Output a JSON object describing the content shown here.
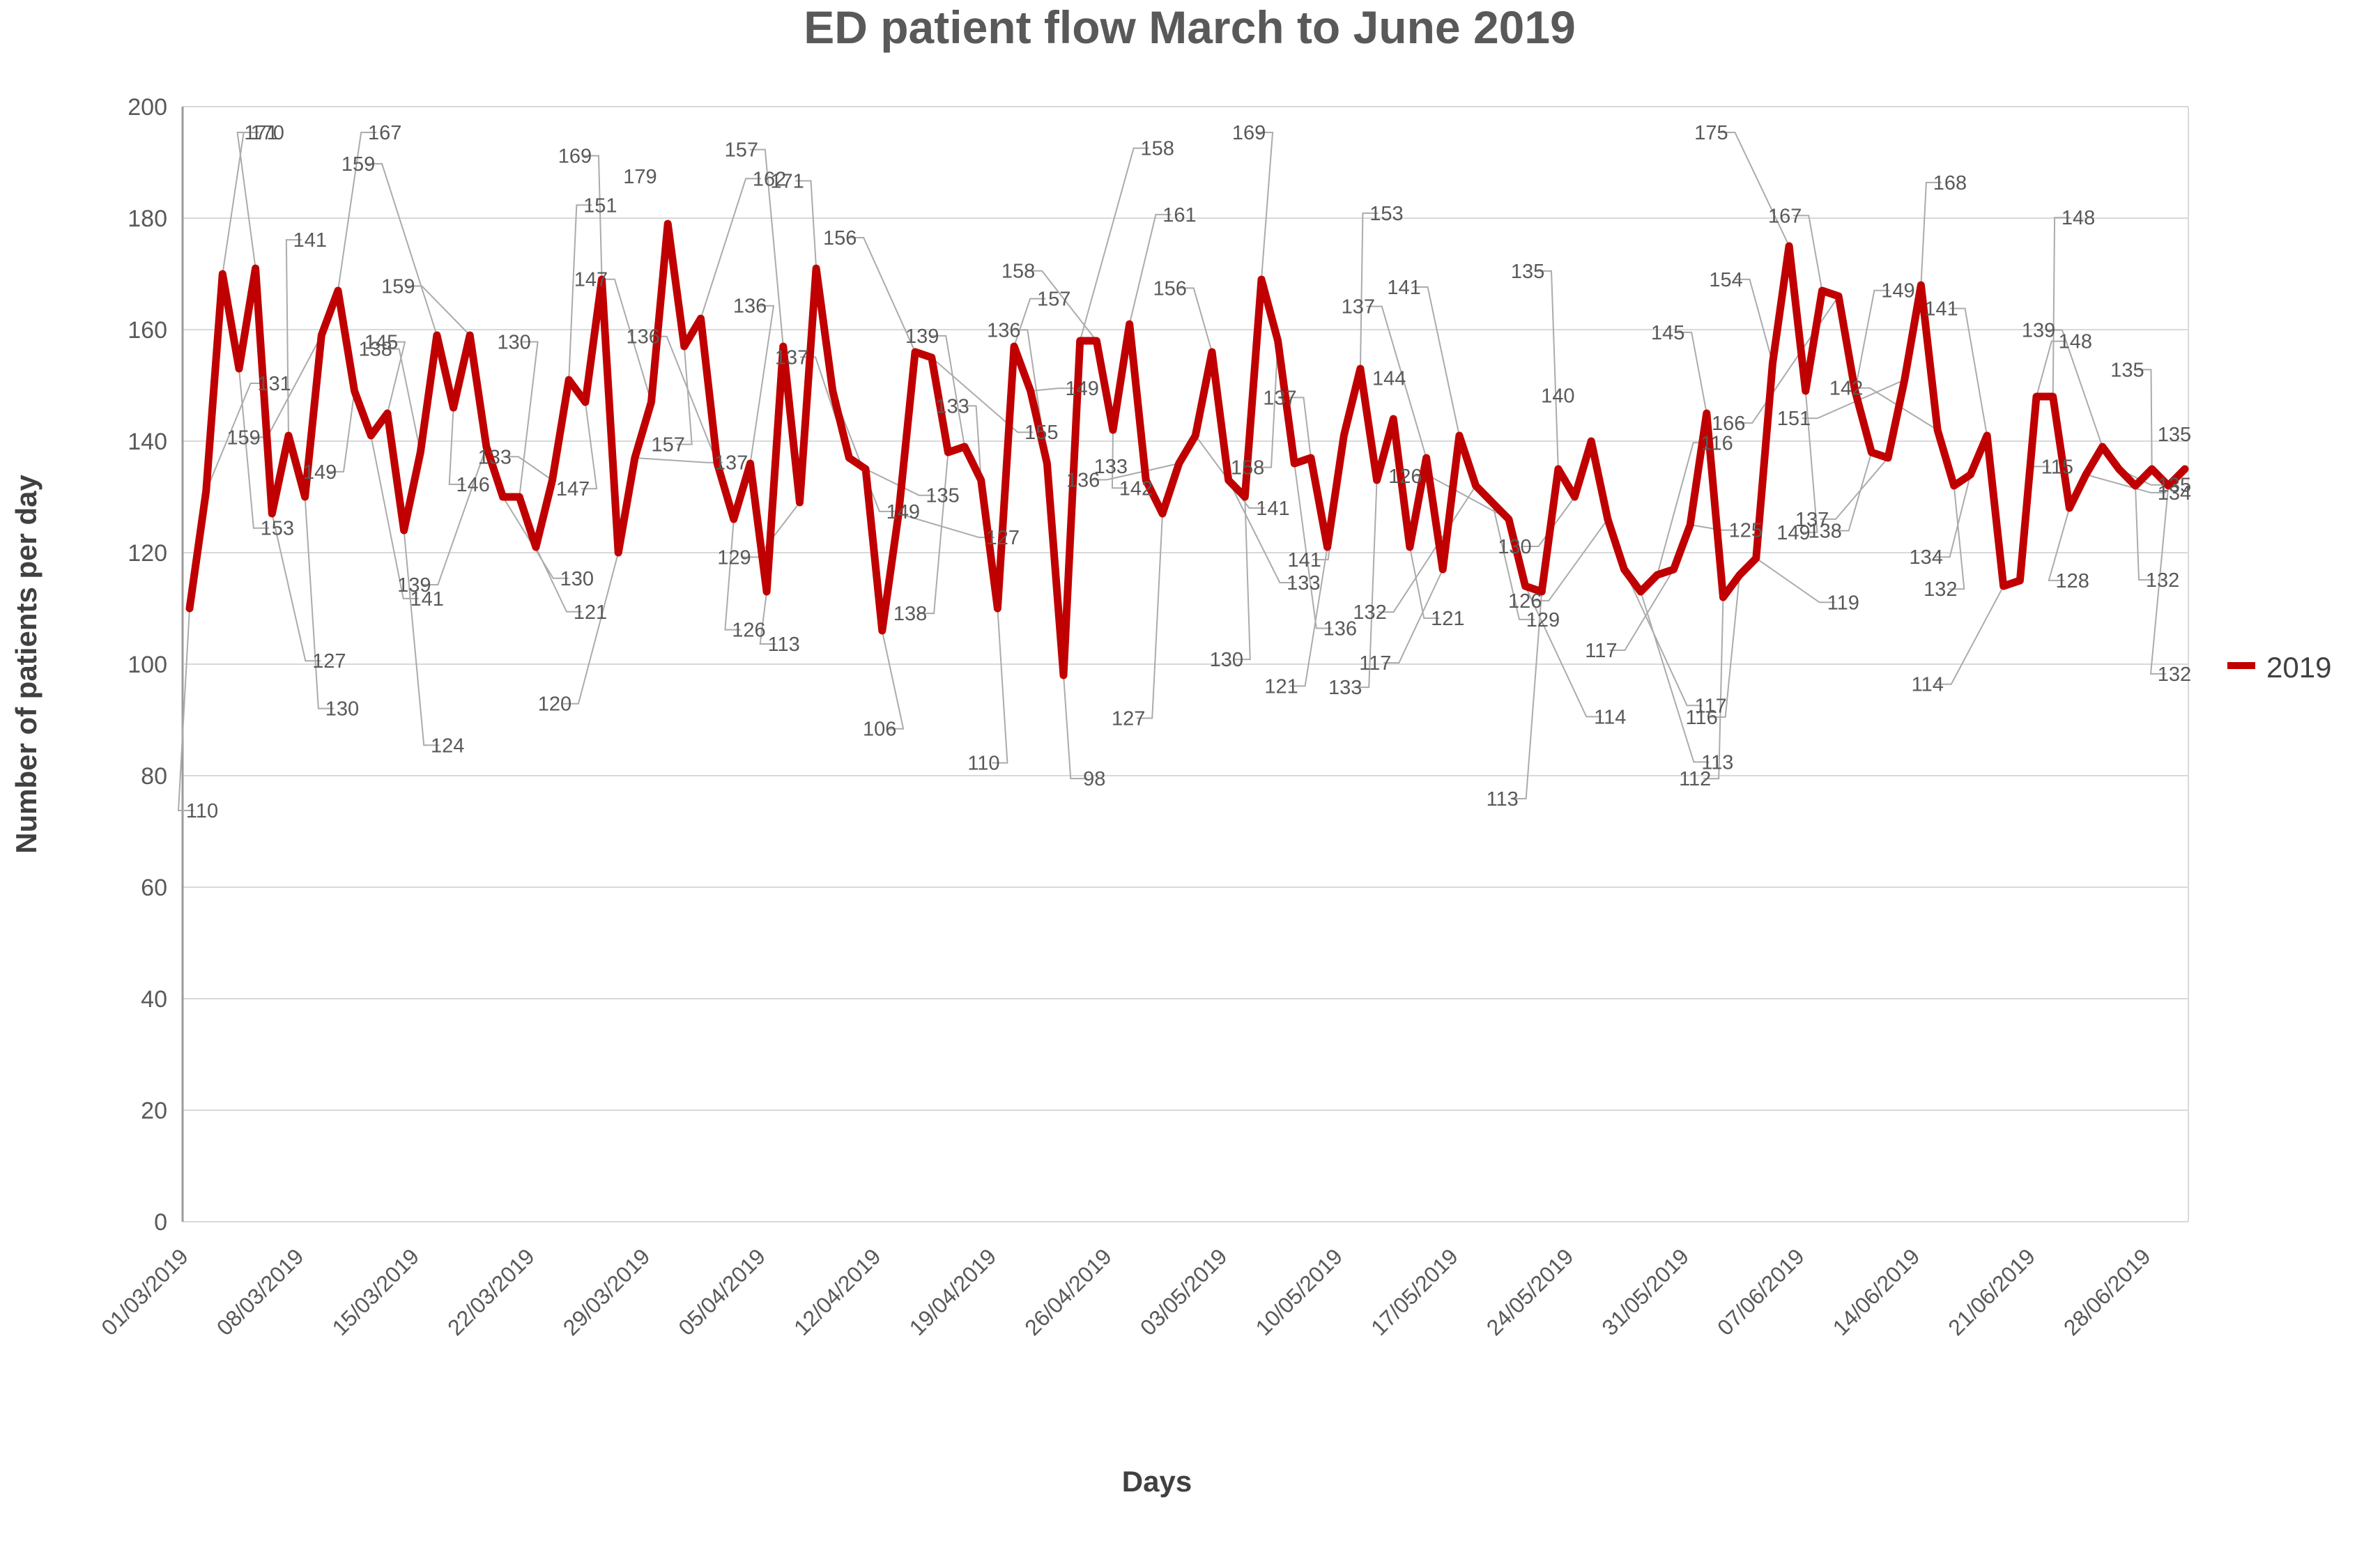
{
  "title": "ED patient flow March to June 2019",
  "y_axis_title": "Number of patients per day",
  "x_axis_title": "Days",
  "legend": {
    "label": "2019",
    "color": "#c00000"
  },
  "colors": {
    "line": "#c00000",
    "gridline": "#d9d9d9",
    "axis_text": "#595959",
    "title_text": "#595959",
    "leader_line": "#ababab"
  },
  "chart_data": {
    "type": "line",
    "title": "ED patient flow March to June 2019",
    "xlabel": "Days",
    "ylabel": "Number of patients per day",
    "ylim": [
      0,
      200
    ],
    "y_ticks": [
      0,
      20,
      40,
      60,
      80,
      100,
      120,
      140,
      160,
      180,
      200
    ],
    "grid": true,
    "data_labels": true,
    "legend_position": "right",
    "x_start_date": "01/03/2019",
    "x_tick_labels": [
      "01/03/2019",
      "08/03/2019",
      "15/03/2019",
      "22/03/2019",
      "29/03/2019",
      "05/04/2019",
      "12/04/2019",
      "19/04/2019",
      "26/04/2019",
      "03/05/2019",
      "10/05/2019",
      "17/05/2019",
      "24/05/2019",
      "31/05/2019",
      "07/06/2019",
      "14/06/2019",
      "21/06/2019",
      "28/06/2019"
    ],
    "x_tick_day_index": [
      0,
      7,
      14,
      21,
      28,
      35,
      42,
      49,
      56,
      63,
      70,
      77,
      84,
      91,
      98,
      105,
      112,
      119
    ],
    "series": [
      {
        "name": "2019",
        "color": "#c00000",
        "values": [
          110,
          131,
          170,
          153,
          171,
          127,
          141,
          130,
          159,
          167,
          149,
          141,
          145,
          124,
          138,
          159,
          146,
          159,
          139,
          130,
          130,
          121,
          133,
          151,
          147,
          169,
          120,
          137,
          147,
          179,
          157,
          162,
          136,
          126,
          136,
          113,
          157,
          129,
          171,
          149,
          137,
          135,
          106,
          127,
          156,
          155,
          138,
          139,
          133,
          110,
          157,
          149,
          136,
          98,
          158,
          158,
          142,
          161,
          133,
          127,
          136,
          141,
          156,
          133,
          130,
          169,
          158,
          136,
          137,
          121,
          141,
          153,
          133,
          144,
          121,
          137,
          117,
          141,
          132,
          129,
          126,
          114,
          113,
          135,
          130,
          140,
          126,
          117,
          113,
          116,
          117,
          125,
          145,
          112,
          116,
          119,
          154,
          175,
          149,
          167,
          166,
          149,
          138,
          137,
          151,
          168,
          142,
          132,
          134,
          141,
          114,
          115,
          148,
          148,
          128,
          134,
          139,
          135,
          132,
          135,
          132,
          135
        ]
      }
    ]
  }
}
